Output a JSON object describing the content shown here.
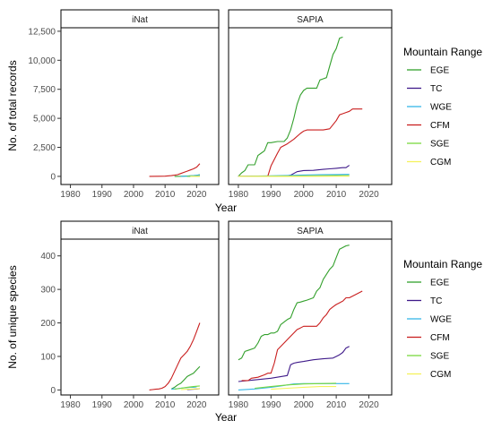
{
  "chart_data": [
    {
      "type": "line",
      "xlabel": "Year",
      "ylabel": "No. of total records",
      "xlim": [
        1977,
        2027
      ],
      "ylim": [
        -700,
        12800
      ],
      "xticks": [
        1980,
        1990,
        2000,
        2010,
        2020
      ],
      "xtick_labels": [
        "1980",
        "1990",
        "2000",
        "2010",
        "2020"
      ],
      "yticks": [
        0,
        2500,
        5000,
        7500,
        10000,
        12500
      ],
      "ytick_labels": [
        "0",
        "2,500",
        "5,000",
        "7,500",
        "10,000",
        "12,500"
      ],
      "grid": false,
      "legend_title": "Mountain Range",
      "legend_placement": "right",
      "facets": [
        {
          "name": "iNat",
          "series": [
            {
              "name": "EGE",
              "x": [
                2013,
                2015,
                2017,
                2019,
                2020,
                2021
              ],
              "y": [
                0,
                10,
                30,
                60,
                90,
                150
              ]
            },
            {
              "name": "TC",
              "x": [
                2017,
                2019,
                2021
              ],
              "y": [
                0,
                10,
                30
              ]
            },
            {
              "name": "WGE",
              "x": [
                2015,
                2017,
                2019,
                2021
              ],
              "y": [
                0,
                20,
                60,
                120
              ]
            },
            {
              "name": "CFM",
              "x": [
                2005,
                2008,
                2010,
                2012,
                2013,
                2014,
                2015,
                2016,
                2017,
                2018,
                2019,
                2020,
                2021
              ],
              "y": [
                0,
                10,
                20,
                60,
                100,
                150,
                250,
                350,
                450,
                550,
                650,
                800,
                1100
              ]
            },
            {
              "name": "SGE",
              "x": [
                2017,
                2019,
                2021
              ],
              "y": [
                0,
                10,
                20
              ]
            },
            {
              "name": "CGM",
              "x": [
                2018,
                2020,
                2021
              ],
              "y": [
                0,
                5,
                15
              ]
            }
          ]
        },
        {
          "name": "SAPIA",
          "series": [
            {
              "name": "EGE",
              "x": [
                1980,
                1981,
                1982,
                1983,
                1985,
                1986,
                1987,
                1988,
                1989,
                1990,
                1992,
                1994,
                1995,
                1996,
                1997,
                1998,
                1999,
                2000,
                2001,
                2002,
                2004,
                2005,
                2006,
                2007,
                2008,
                2009,
                2010,
                2011,
                2012
              ],
              "y": [
                0,
                300,
                500,
                1000,
                1000,
                1800,
                2000,
                2200,
                2900,
                2900,
                3000,
                3000,
                3300,
                4000,
                5000,
                6200,
                7000,
                7400,
                7600,
                7600,
                7600,
                8300,
                8400,
                8500,
                9500,
                10500,
                11000,
                11900,
                12000
              ]
            },
            {
              "name": "TC",
              "x": [
                1980,
                1990,
                1995,
                1996,
                1998,
                2000,
                2003,
                2004,
                2006,
                2008,
                2010,
                2012,
                2013,
                2014
              ],
              "y": [
                0,
                20,
                50,
                100,
                400,
                500,
                520,
                550,
                600,
                650,
                700,
                750,
                750,
                950
              ]
            },
            {
              "name": "WGE",
              "x": [
                1980,
                1990,
                1995,
                2000,
                2005,
                2010,
                2014
              ],
              "y": [
                0,
                50,
                80,
                120,
                140,
                160,
                170
              ]
            },
            {
              "name": "CFM",
              "x": [
                1980,
                1989,
                1990,
                1992,
                1993,
                1995,
                1997,
                1999,
                2000,
                2001,
                2006,
                2008,
                2010,
                2011,
                2013,
                2014,
                2015,
                2018
              ],
              "y": [
                0,
                0,
                900,
                2000,
                2500,
                2800,
                3200,
                3700,
                3900,
                4000,
                4000,
                4100,
                4800,
                5300,
                5500,
                5600,
                5800,
                5800
              ]
            },
            {
              "name": "SGE",
              "x": [
                1980,
                1990,
                2000,
                2010,
                2014
              ],
              "y": [
                0,
                20,
                40,
                60,
                70
              ]
            },
            {
              "name": "CGM",
              "x": [
                1980,
                1995,
                2005,
                2014
              ],
              "y": [
                0,
                5,
                10,
                15
              ]
            }
          ]
        }
      ]
    },
    {
      "type": "line",
      "xlabel": "Year",
      "ylabel": "No. of unique species",
      "xlim": [
        1977,
        2027
      ],
      "ylim": [
        -15,
        450
      ],
      "xticks": [
        1980,
        1990,
        2000,
        2010,
        2020
      ],
      "xtick_labels": [
        "1980",
        "1990",
        "2000",
        "2010",
        "2020"
      ],
      "yticks": [
        0,
        100,
        200,
        300,
        400
      ],
      "ytick_labels": [
        "0",
        "100",
        "200",
        "300",
        "400"
      ],
      "grid": false,
      "legend_title": "Mountain Range",
      "legend_placement": "right",
      "facets": [
        {
          "name": "iNat",
          "series": [
            {
              "name": "EGE",
              "x": [
                2012,
                2013,
                2014,
                2015,
                2016,
                2017,
                2018,
                2019,
                2020,
                2021
              ],
              "y": [
                3,
                8,
                15,
                20,
                30,
                40,
                45,
                50,
                60,
                70
              ]
            },
            {
              "name": "TC",
              "x": [
                2017,
                2019,
                2020,
                2021
              ],
              "y": [
                1,
                2,
                3,
                4
              ]
            },
            {
              "name": "WGE",
              "x": [
                2012,
                2014,
                2016,
                2017,
                2018,
                2019,
                2020
              ],
              "y": [
                2,
                4,
                6,
                7,
                8,
                8,
                9
              ]
            },
            {
              "name": "CFM",
              "x": [
                2005,
                2006,
                2007,
                2008,
                2009,
                2010,
                2011,
                2012,
                2013,
                2014,
                2015,
                2016,
                2017,
                2018,
                2019,
                2020,
                2021
              ],
              "y": [
                0,
                1,
                2,
                3,
                5,
                10,
                20,
                35,
                55,
                75,
                95,
                105,
                115,
                130,
                150,
                175,
                200
              ]
            },
            {
              "name": "SGE",
              "x": [
                2013,
                2015,
                2017,
                2019,
                2021
              ],
              "y": [
                2,
                5,
                8,
                10,
                12
              ]
            },
            {
              "name": "CGM",
              "x": [
                2015,
                2017,
                2019,
                2021
              ],
              "y": [
                1,
                2,
                3,
                4
              ]
            }
          ]
        },
        {
          "name": "SAPIA",
          "series": [
            {
              "name": "EGE",
              "x": [
                1980,
                1981,
                1982,
                1983,
                1985,
                1986,
                1987,
                1988,
                1989,
                1990,
                1991,
                1992,
                1993,
                1995,
                1996,
                1997,
                1998,
                1999,
                2000,
                2001,
                2003,
                2004,
                2005,
                2006,
                2007,
                2008,
                2009,
                2010,
                2011,
                2012,
                2013,
                2014
              ],
              "y": [
                90,
                95,
                115,
                118,
                125,
                140,
                160,
                165,
                165,
                170,
                170,
                175,
                195,
                210,
                215,
                240,
                260,
                262,
                265,
                268,
                275,
                295,
                305,
                330,
                345,
                360,
                370,
                395,
                420,
                425,
                430,
                432
              ]
            },
            {
              "name": "TC",
              "x": [
                1980,
                1985,
                1990,
                1995,
                1996,
                1997,
                1998,
                2000,
                2003,
                2006,
                2009,
                2010,
                2011,
                2012,
                2013,
                2014
              ],
              "y": [
                25,
                30,
                35,
                43,
                75,
                80,
                82,
                85,
                90,
                93,
                95,
                100,
                105,
                112,
                125,
                130
              ]
            },
            {
              "name": "WGE",
              "x": [
                1980,
                1985,
                1990,
                1993,
                1995,
                1997,
                2000,
                2005,
                2010,
                2014
              ],
              "y": [
                0,
                3,
                8,
                12,
                15,
                18,
                19,
                19,
                19,
                19
              ]
            },
            {
              "name": "CFM",
              "x": [
                1981,
                1983,
                1984,
                1986,
                1988,
                1989,
                1990,
                1991,
                1992,
                1994,
                1995,
                1997,
                1998,
                1999,
                2000,
                2004,
                2005,
                2006,
                2007,
                2008,
                2009,
                2010,
                2011,
                2012,
                2013,
                2014,
                2016,
                2018
              ],
              "y": [
                28,
                28,
                35,
                38,
                45,
                50,
                50,
                80,
                120,
                140,
                150,
                170,
                180,
                185,
                190,
                190,
                200,
                215,
                225,
                240,
                248,
                255,
                260,
                265,
                275,
                275,
                285,
                295
              ]
            },
            {
              "name": "SGE",
              "x": [
                1985,
                1990,
                1995,
                2000,
                2005,
                2010
              ],
              "y": [
                5,
                10,
                15,
                18,
                19,
                20
              ]
            },
            {
              "name": "CGM",
              "x": [
                1990,
                1995,
                2000,
                2005,
                2010
              ],
              "y": [
                2,
                5,
                8,
                10,
                10
              ]
            }
          ]
        }
      ]
    }
  ],
  "legend": [
    {
      "name": "EGE",
      "color": "#33a02c"
    },
    {
      "name": "TC",
      "color": "#3f1a8a"
    },
    {
      "name": "WGE",
      "color": "#35b6e8"
    },
    {
      "name": "CFM",
      "color": "#c91f1f"
    },
    {
      "name": "SGE",
      "color": "#79d83f"
    },
    {
      "name": "CGM",
      "color": "#f4f25c"
    }
  ]
}
